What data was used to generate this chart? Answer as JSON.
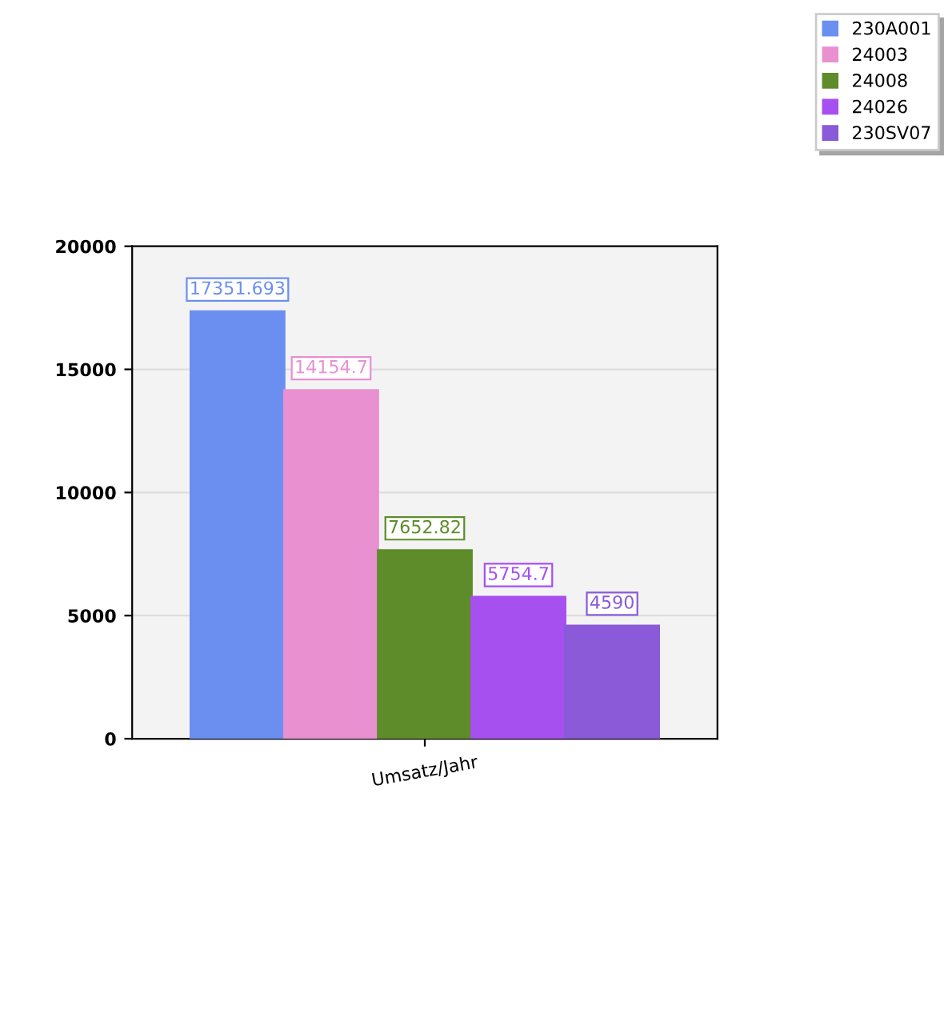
{
  "chart_data": {
    "type": "bar",
    "categories": [
      "Umsatz/Jahr"
    ],
    "series": [
      {
        "name": "230A001",
        "color": "#6a8ff0",
        "values": [
          17351.693
        ]
      },
      {
        "name": "24003",
        "color": "#e890d0",
        "values": [
          14154.7
        ]
      },
      {
        "name": "24008",
        "color": "#5f8c2a",
        "values": [
          7652.82
        ]
      },
      {
        "name": "24026",
        "color": "#a650f0",
        "values": [
          5754.7
        ]
      },
      {
        "name": "230SV07",
        "color": "#8a5ad8",
        "values": [
          4590
        ]
      }
    ],
    "ylim": [
      0,
      20000
    ],
    "yticks": [
      0,
      5000,
      10000,
      15000,
      20000
    ],
    "grid": "y",
    "legend": "top right",
    "data_labels": true
  }
}
